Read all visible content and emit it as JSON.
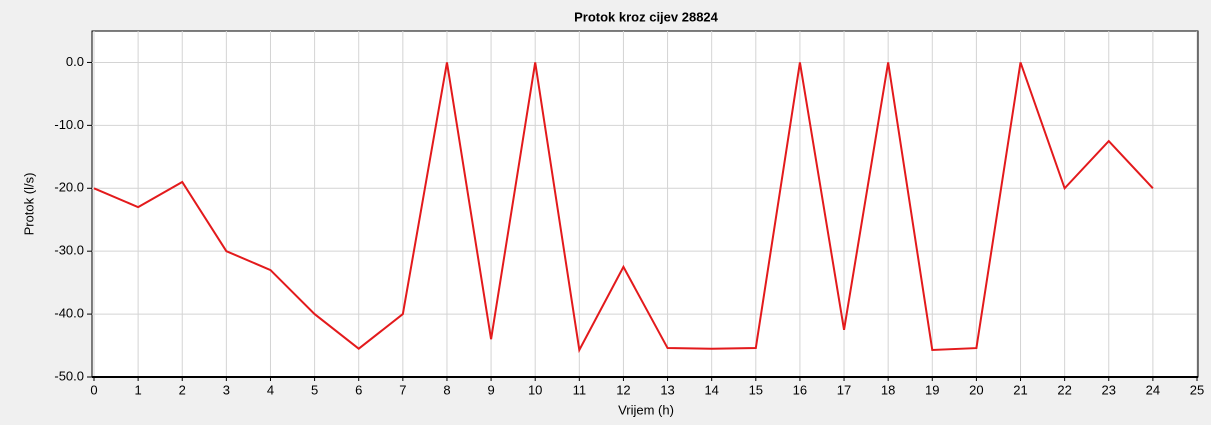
{
  "chart_data": {
    "type": "line",
    "title": "Protok kroz cijev 28824",
    "x_label": "Vrijem (h)",
    "y_label": "Protok (l/s)",
    "x": [
      0,
      1,
      2,
      3,
      4,
      5,
      6,
      7,
      8,
      9,
      10,
      11,
      12,
      13,
      14,
      15,
      16,
      17,
      18,
      19,
      20,
      21,
      22,
      23,
      24
    ],
    "series": [
      {
        "name": "Protok",
        "color": "#e31a1c",
        "values": [
          -20,
          -23,
          -19,
          -30,
          -33,
          -40,
          -45.5,
          -40,
          0,
          -44,
          0,
          -45.7,
          -32.5,
          -45.4,
          -45.5,
          -45.4,
          0,
          -42.5,
          0,
          -45.7,
          -45.4,
          0,
          -20,
          -12.5,
          -20
        ]
      }
    ],
    "xlim": [
      0,
      25
    ],
    "xticks": [
      0,
      1,
      2,
      3,
      4,
      5,
      6,
      7,
      8,
      9,
      10,
      11,
      12,
      13,
      14,
      15,
      16,
      17,
      18,
      19,
      20,
      21,
      22,
      23,
      24,
      25
    ],
    "ylim": [
      -50,
      5
    ],
    "yticks": [
      {
        "value": -50,
        "label": "-50.0"
      },
      {
        "value": -40,
        "label": "-40.0"
      },
      {
        "value": -30,
        "label": "-30.0"
      },
      {
        "value": -20,
        "label": "-20.0"
      },
      {
        "value": -10,
        "label": "-10.0"
      },
      {
        "value": 0,
        "label": "0.0"
      }
    ],
    "grid": true
  }
}
